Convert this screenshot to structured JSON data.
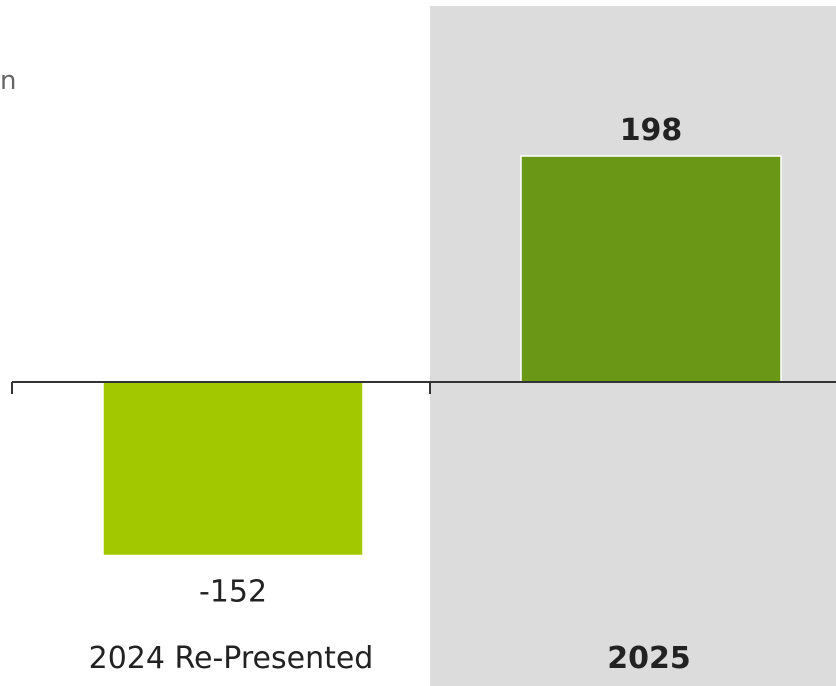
{
  "chart_data": {
    "type": "bar",
    "title": "n",
    "categories": [
      "2024 Re-Presented",
      "2025"
    ],
    "values": [
      -152,
      198
    ],
    "value_labels": [
      "-152",
      "198"
    ],
    "ylim": [
      -152,
      198
    ],
    "grid": false,
    "legend": "none",
    "highlighted_category": "2025",
    "colors": {
      "bars": [
        "#a2c800",
        "#6a9816"
      ],
      "highlight_panel": "#dcdcdc",
      "axis": "#333333",
      "text": "#222222"
    }
  }
}
